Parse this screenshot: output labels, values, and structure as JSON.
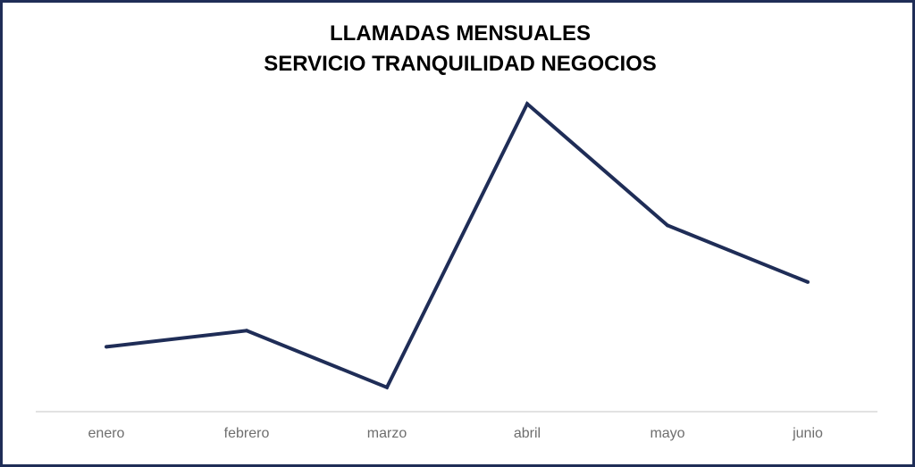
{
  "chart_data": {
    "type": "line",
    "title": "LLAMADAS MENSUALES",
    "subtitle": "SERVICIO TRANQUILIDAD NEGOCIOS",
    "categories": [
      "enero",
      "febrero",
      "marzo",
      "abril",
      "mayo",
      "junio"
    ],
    "series": [
      {
        "values": [
          4.0,
          5.0,
          1.5,
          19.0,
          11.5,
          8.0
        ]
      }
    ],
    "ylim": [
      0,
      21
    ],
    "grid": false,
    "legend": "none",
    "line_color": "#1f2d57",
    "axis_color": "#d9d9d9",
    "tick_color": "#6e6e6e"
  }
}
